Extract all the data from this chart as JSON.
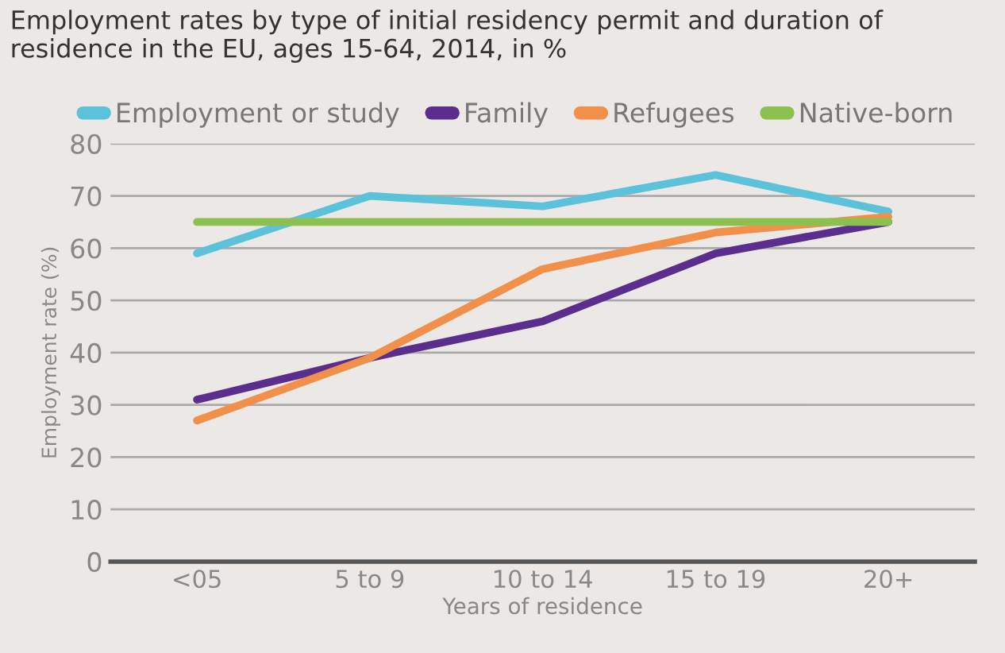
{
  "chart_data": {
    "type": "line",
    "title": "Employment rates by type of initial residency permit and duration of residence in the EU, ages 15-64, 2014, in %",
    "xlabel": "Years of residence",
    "ylabel": "Employment rate (%)",
    "categories": [
      "<05",
      "5 to 9",
      "10 to 14",
      "15 to 19",
      "20+"
    ],
    "series": [
      {
        "name": "Employment or study",
        "color": "#5bc2d9",
        "values": [
          59,
          70,
          68,
          74,
          67
        ]
      },
      {
        "name": "Family",
        "color": "#5b2d8c",
        "values": [
          31,
          39,
          46,
          59,
          65
        ]
      },
      {
        "name": "Refugees",
        "color": "#f0904a",
        "values": [
          27,
          39,
          56,
          63,
          66
        ]
      },
      {
        "name": "Native-born",
        "color": "#8cc152",
        "values": [
          65,
          65,
          65,
          65,
          65
        ]
      }
    ],
    "ylim": [
      0,
      80
    ],
    "yticks": [
      0,
      10,
      20,
      30,
      40,
      50,
      60,
      70,
      80
    ],
    "grid": "y",
    "legend": "top",
    "marker": "none",
    "line_style": "solid"
  }
}
